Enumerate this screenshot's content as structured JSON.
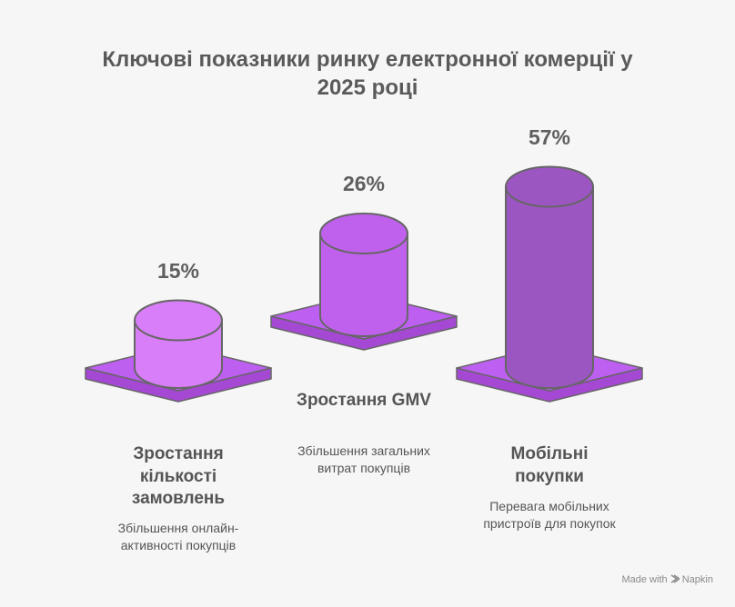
{
  "chart_data": {
    "type": "cylinder",
    "title": "Ключові показники ринку електронної комерції у 2025 році",
    "categories": [
      "Зростання кількості замовлень",
      "Зростання GMV",
      "Мобільні покупки"
    ],
    "descriptions": [
      "Збільшення онлайн-активності покупців",
      "Збільшення загальних витрат покупців",
      "Перевага мобільних пристроїв для покупок"
    ],
    "values": [
      15,
      26,
      57
    ],
    "value_labels": [
      "15%",
      "26%",
      "57%"
    ],
    "colors": [
      "#d87ef8",
      "#c061ee",
      "#9c56c2"
    ],
    "platform_color": "#bd5ff0"
  },
  "footer": {
    "made_with": "Made with",
    "brand": "Napkin"
  }
}
